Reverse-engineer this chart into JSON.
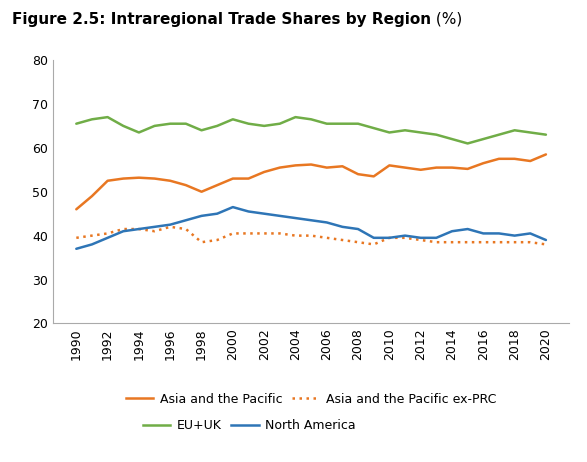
{
  "title_bold": "Figure 2.5: Intraregional Trade Shares by Region",
  "title_normal": " (%)",
  "years": [
    1990,
    1991,
    1992,
    1993,
    1994,
    1995,
    1996,
    1997,
    1998,
    1999,
    2000,
    2001,
    2002,
    2003,
    2004,
    2005,
    2006,
    2007,
    2008,
    2009,
    2010,
    2011,
    2012,
    2013,
    2014,
    2015,
    2016,
    2017,
    2018,
    2019,
    2020
  ],
  "asia_pacific": [
    46.0,
    49.0,
    52.5,
    53.0,
    53.2,
    53.0,
    52.5,
    51.5,
    50.0,
    51.5,
    53.0,
    53.0,
    54.5,
    55.5,
    56.0,
    56.2,
    55.5,
    55.8,
    54.0,
    53.5,
    56.0,
    55.5,
    55.0,
    55.5,
    55.5,
    55.2,
    56.5,
    57.5,
    57.5,
    57.0,
    58.5
  ],
  "asia_pacific_ex_prc": [
    39.5,
    40.0,
    40.5,
    41.5,
    41.5,
    41.0,
    42.0,
    41.5,
    38.5,
    39.0,
    40.5,
    40.5,
    40.5,
    40.5,
    40.0,
    40.0,
    39.5,
    39.0,
    38.5,
    38.0,
    39.5,
    39.5,
    39.0,
    38.5,
    38.5,
    38.5,
    38.5,
    38.5,
    38.5,
    38.5,
    38.0
  ],
  "eu_uk": [
    65.5,
    66.5,
    67.0,
    65.0,
    63.5,
    65.0,
    65.5,
    65.5,
    64.0,
    65.0,
    66.5,
    65.5,
    65.0,
    65.5,
    67.0,
    66.5,
    65.5,
    65.5,
    65.5,
    64.5,
    63.5,
    64.0,
    63.5,
    63.0,
    62.0,
    61.0,
    62.0,
    63.0,
    64.0,
    63.5,
    63.0
  ],
  "north_america": [
    37.0,
    38.0,
    39.5,
    41.0,
    41.5,
    42.0,
    42.5,
    43.5,
    44.5,
    45.0,
    46.5,
    45.5,
    45.0,
    44.5,
    44.0,
    43.5,
    43.0,
    42.0,
    41.5,
    39.5,
    39.5,
    40.0,
    39.5,
    39.5,
    41.0,
    41.5,
    40.5,
    40.5,
    40.0,
    40.5,
    39.0
  ],
  "color_asia_pacific": "#E87722",
  "color_asia_pacific_ex_prc": "#E87722",
  "color_eu_uk": "#70AD47",
  "color_north_america": "#2E75B6",
  "ylim": [
    20,
    80
  ],
  "yticks": [
    20,
    30,
    40,
    50,
    60,
    70,
    80
  ],
  "xtick_years": [
    1990,
    1992,
    1994,
    1996,
    1998,
    2000,
    2002,
    2004,
    2006,
    2008,
    2010,
    2012,
    2014,
    2016,
    2018,
    2020
  ],
  "legend_row1": [
    "Asia and the Pacific",
    "Asia and the Pacific ex-PRC"
  ],
  "legend_row2": [
    "EU+UK",
    "North America"
  ],
  "background_color": "#FFFFFF",
  "linewidth": 1.8,
  "title_fontsize": 11,
  "tick_fontsize": 9,
  "legend_fontsize": 9
}
